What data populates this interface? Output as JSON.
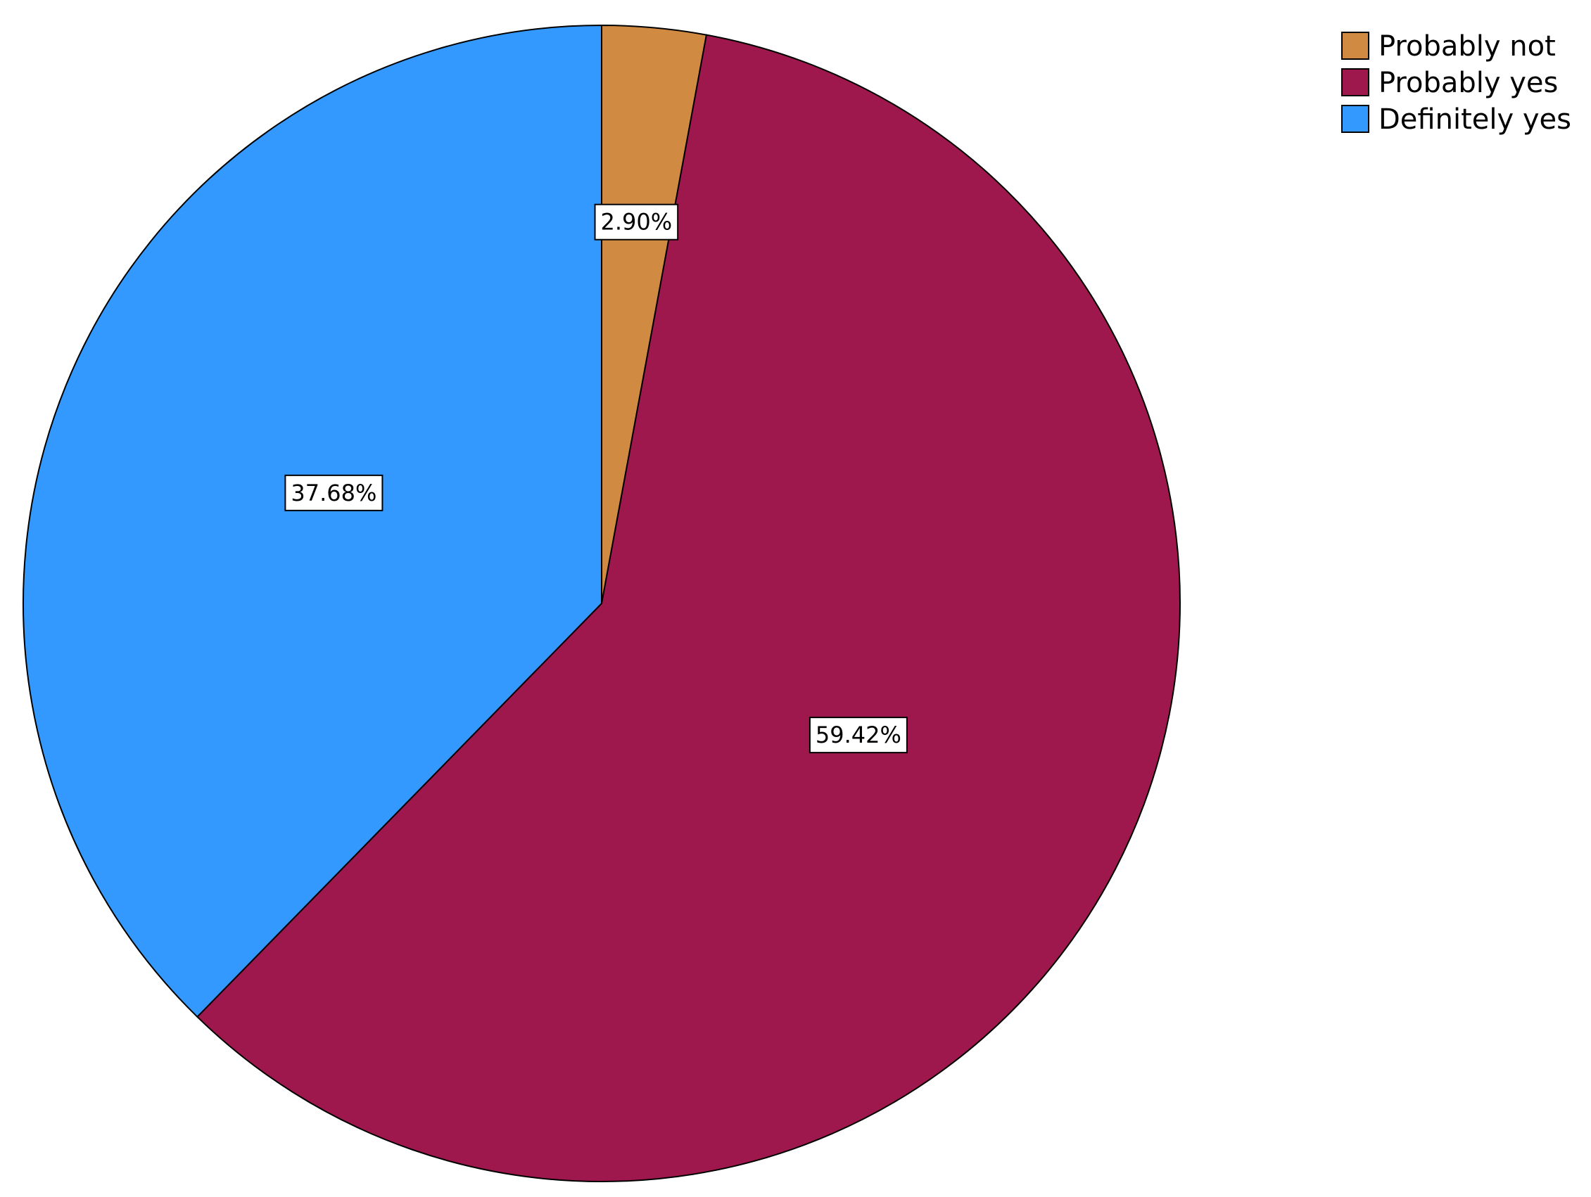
{
  "chart_data": {
    "type": "pie",
    "categories": [
      "Probably not",
      "Probably yes",
      "Definitely yes"
    ],
    "values": [
      2.9,
      59.42,
      37.68
    ],
    "value_labels": [
      "2.90%",
      "59.42%",
      "37.68%"
    ],
    "colors": [
      "#d08a42",
      "#9e184d",
      "#3399ff"
    ],
    "legend": "top-right"
  }
}
